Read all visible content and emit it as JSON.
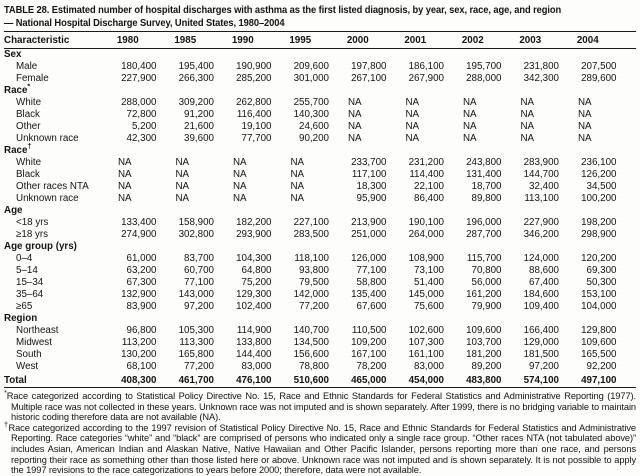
{
  "page": {
    "title_line1": "TABLE 28. Estimated number of hospital discharges with asthma as the first listed diagnosis, by year, sex, race, age, and region",
    "title_line2": "— National Hospital Discharge Survey, United States, 1980–2004"
  },
  "table": {
    "columns": [
      "Characteristic",
      "1980",
      "1985",
      "1990",
      "1995",
      "2000",
      "2001",
      "2002",
      "2003",
      "2004"
    ],
    "sections": [
      {
        "header": "Sex",
        "sup": "",
        "rows": [
          {
            "label": "Male",
            "values": [
              "180,400",
              "195,400",
              "190,900",
              "209,600",
              "197,800",
              "186,100",
              "195,700",
              "231,800",
              "207,500"
            ]
          },
          {
            "label": "Female",
            "values": [
              "227,900",
              "266,300",
              "285,200",
              "301,000",
              "267,100",
              "267,900",
              "288,000",
              "342,300",
              "289,600"
            ]
          }
        ]
      },
      {
        "header": "Race",
        "sup": "*",
        "rows": [
          {
            "label": "White",
            "values": [
              "288,000",
              "309,200",
              "262,800",
              "255,700",
              "NA",
              "NA",
              "NA",
              "NA",
              "NA"
            ]
          },
          {
            "label": "Black",
            "values": [
              "72,800",
              "91,200",
              "116,400",
              "140,300",
              "NA",
              "NA",
              "NA",
              "NA",
              "NA"
            ]
          },
          {
            "label": "Other",
            "values": [
              "5,200",
              "21,600",
              "19,100",
              "24,600",
              "NA",
              "NA",
              "NA",
              "NA",
              "NA"
            ]
          },
          {
            "label": "Unknown race",
            "values": [
              "42,300",
              "39,600",
              "77,700",
              "90,200",
              "NA",
              "NA",
              "NA",
              "NA",
              "NA"
            ]
          }
        ]
      },
      {
        "header": "Race",
        "sup": "†",
        "rows": [
          {
            "label": "White",
            "values": [
              "NA",
              "NA",
              "NA",
              "NA",
              "233,700",
              "231,200",
              "243,800",
              "283,900",
              "236,100"
            ]
          },
          {
            "label": "Black",
            "values": [
              "NA",
              "NA",
              "NA",
              "NA",
              "117,100",
              "114,400",
              "131,400",
              "144,700",
              "126,200"
            ]
          },
          {
            "label": "Other races NTA",
            "values": [
              "NA",
              "NA",
              "NA",
              "NA",
              "18,300",
              "22,100",
              "18,700",
              "32,400",
              "34,500"
            ]
          },
          {
            "label": "Unknown race",
            "values": [
              "NA",
              "NA",
              "NA",
              "NA",
              "95,900",
              "86,400",
              "89,800",
              "113,100",
              "100,200"
            ]
          }
        ]
      },
      {
        "header": "Age",
        "sup": "",
        "rows": [
          {
            "label": "<18 yrs",
            "values": [
              "133,400",
              "158,900",
              "182,200",
              "227,100",
              "213,900",
              "190,100",
              "196,000",
              "227,900",
              "198,200"
            ]
          },
          {
            "label": "≥18 yrs",
            "values": [
              "274,900",
              "302,800",
              "293,900",
              "283,500",
              "251,000",
              "264,000",
              "287,700",
              "346,200",
              "298,900"
            ]
          }
        ]
      },
      {
        "header": "Age group (yrs)",
        "sup": "",
        "rows": [
          {
            "label": "0–4",
            "values": [
              "61,000",
              "83,700",
              "104,300",
              "118,100",
              "126,000",
              "108,900",
              "115,700",
              "124,000",
              "120,200"
            ]
          },
          {
            "label": "5–14",
            "values": [
              "63,200",
              "60,700",
              "64,800",
              "93,800",
              "77,100",
              "73,100",
              "70,800",
              "88,600",
              "69,300"
            ]
          },
          {
            "label": "15–34",
            "values": [
              "67,300",
              "77,100",
              "75,200",
              "79,500",
              "58,800",
              "51,400",
              "56,000",
              "67,400",
              "50,300"
            ]
          },
          {
            "label": "35–64",
            "values": [
              "132,900",
              "143,000",
              "129,300",
              "142,000",
              "135,400",
              "145,000",
              "161,200",
              "184,600",
              "153,100"
            ]
          },
          {
            "label": "≥65",
            "values": [
              "83,900",
              "97,200",
              "102,400",
              "77,200",
              "67,600",
              "75,600",
              "79,900",
              "109,400",
              "104,000"
            ]
          }
        ]
      },
      {
        "header": "Region",
        "sup": "",
        "rows": [
          {
            "label": "Northeast",
            "values": [
              "96,800",
              "105,300",
              "114,900",
              "140,700",
              "110,500",
              "102,600",
              "109,600",
              "166,400",
              "129,800"
            ]
          },
          {
            "label": "Midwest",
            "values": [
              "113,200",
              "113,300",
              "133,800",
              "134,500",
              "109,200",
              "107,300",
              "103,700",
              "129,000",
              "109,600"
            ]
          },
          {
            "label": "South",
            "values": [
              "130,200",
              "165,800",
              "144,400",
              "156,600",
              "167,100",
              "161,100",
              "181,200",
              "181,500",
              "165,500"
            ]
          },
          {
            "label": "West",
            "values": [
              "68,100",
              "77,200",
              "83,000",
              "78,800",
              "78,200",
              "83,000",
              "89,200",
              "97,200",
              "92,200"
            ]
          }
        ]
      }
    ],
    "total": {
      "label": "Total",
      "values": [
        "408,300",
        "461,700",
        "476,100",
        "510,600",
        "465,000",
        "454,000",
        "483,800",
        "574,100",
        "497,100"
      ]
    }
  },
  "footnotes": [
    {
      "marker": "*",
      "text": "Race categorized according to Statistical Policy Directive No. 15, Race and Ethnic Standards for Federal Statistics and Administrative Reporting (1977). Multiple race was not collected in these years. Unknown race was not imputed and is shown separately. After 1999, there is no bridging variable to maintain historic coding therefore data are not available (NA)."
    },
    {
      "marker": "†",
      "text": "Race categorized according to the 1997 revision of Statistical Policy Directive No. 15, Race and Ethnic Standards for Federal Statistics and Administrative Reporting. Race categories “white” and “black” are comprised of persons who indicated only a single race group. “Other races NTA (not tabulated above)” includes Asian, American Indian and Alaskan Native, Native Hawaiian and Other Pacific Islander, persons reporting more than one race, and persons reporting their race as something other than those listed here or above. Unknown race was not imputed and is shown separately. It is not possible to apply the 1997 revisions to the race categorizations to years before 2000; therefore, data were not available."
    }
  ]
}
